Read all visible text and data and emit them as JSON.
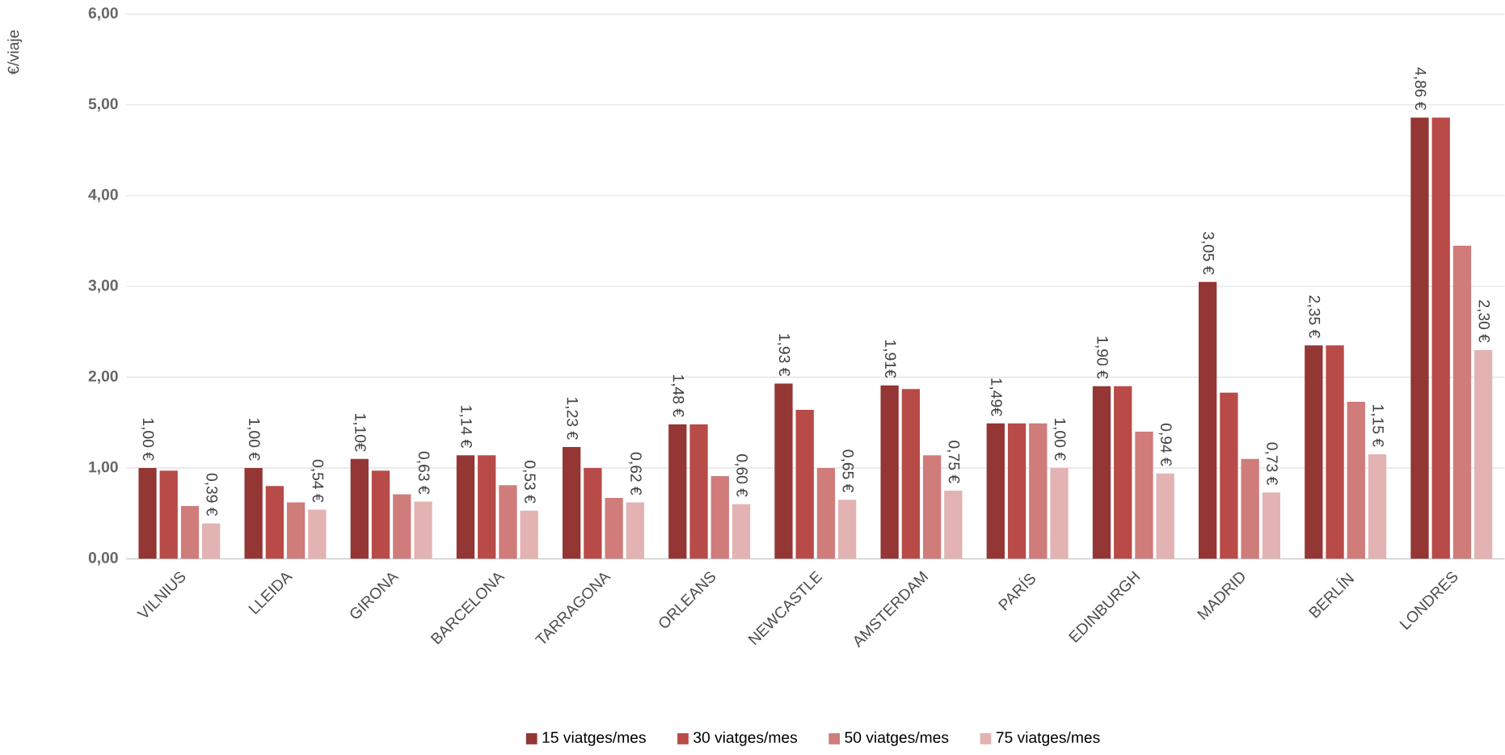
{
  "chart_data": {
    "type": "bar",
    "ylabel": "€/viaje",
    "categories": [
      "VILNIUS",
      "LLEIDA",
      "GIRONA",
      "BARCELONA",
      "TARRAGONA",
      "ORLEANS",
      "NEWCASTLE",
      "AMSTERDAM",
      "PARÍS",
      "EDINBURGH",
      "MADRID",
      "BERLÍN",
      "LONDRES"
    ],
    "series": [
      {
        "name": "15 viatges/mes",
        "color": "#943634",
        "values": [
          1.0,
          1.0,
          1.1,
          1.14,
          1.23,
          1.48,
          1.93,
          1.91,
          1.49,
          1.9,
          3.05,
          2.35,
          4.86
        ],
        "value_labels": [
          "1,00 €",
          "1,00 €",
          "1,10€",
          "1,14 €",
          "1,23 €",
          "1,48 €",
          "1,93 €",
          "1,91€",
          "1,49€",
          "1,90 €",
          "3,05 €",
          "2,35 €",
          "4,86 €"
        ]
      },
      {
        "name": "30 viatges/mes",
        "color": "#b84a48",
        "values": [
          0.97,
          0.8,
          0.97,
          1.14,
          1.0,
          1.48,
          1.64,
          1.87,
          1.49,
          1.9,
          1.83,
          2.35,
          4.86
        ]
      },
      {
        "name": "50 viatges/mes",
        "color": "#cf7c7a",
        "values": [
          0.58,
          0.62,
          0.71,
          0.81,
          0.67,
          0.91,
          1.0,
          1.14,
          1.49,
          1.4,
          1.1,
          1.73,
          3.45
        ]
      },
      {
        "name": "75 viatges/mes",
        "color": "#e2b3b2",
        "values": [
          0.39,
          0.54,
          0.63,
          0.53,
          0.62,
          0.6,
          0.65,
          0.75,
          1.0,
          0.94,
          0.73,
          1.15,
          2.3
        ],
        "value_labels": [
          "0,39 €",
          "0,54 €",
          "0,63 €",
          "0,53 €",
          "0,62 €",
          "0,60 €",
          "0,65 €",
          "0,75 €",
          "1,00 €",
          "0,94 €",
          "0,73 €",
          "1,15 €",
          "2,30 €"
        ]
      }
    ],
    "ylim": [
      0,
      6
    ],
    "yticks": [
      {
        "value": 0,
        "label": "0,00"
      },
      {
        "value": 1,
        "label": "1,00"
      },
      {
        "value": 2,
        "label": "2,00"
      },
      {
        "value": 3,
        "label": "3,00"
      },
      {
        "value": 4,
        "label": "4,00"
      },
      {
        "value": 5,
        "label": "5,00"
      },
      {
        "value": 6,
        "label": "6,00"
      }
    ],
    "grid": "y",
    "legend": "bottom"
  }
}
